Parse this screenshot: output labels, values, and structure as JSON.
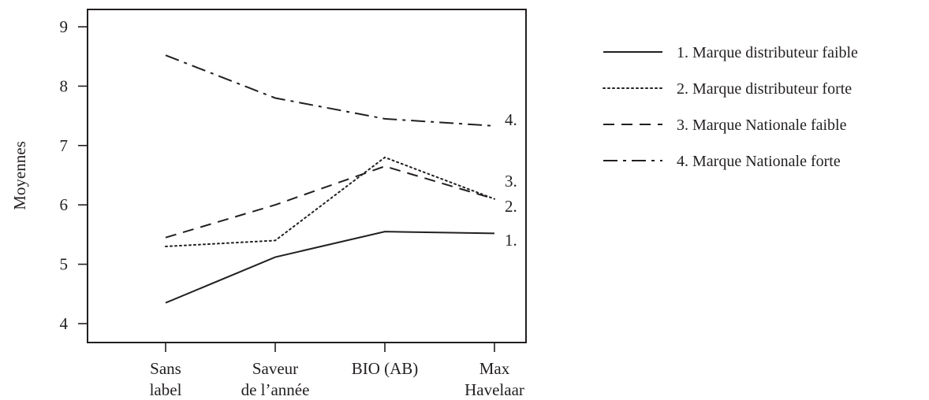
{
  "chart_data": {
    "type": "line",
    "ylabel": "Moyennes",
    "xlabel": "",
    "ylim": [
      3.7,
      9.3
    ],
    "yticks": [
      4,
      5,
      6,
      7,
      8,
      9
    ],
    "categories": [
      [
        "Sans",
        "label"
      ],
      [
        "Saveur",
        "de l’année"
      ],
      [
        "BIO (AB)"
      ],
      [
        "Max",
        "Havelaar"
      ]
    ],
    "series": [
      {
        "name": "1. Marque distributeur faible",
        "end_label": "1.",
        "style": "solid",
        "values": [
          4.35,
          5.12,
          5.55,
          5.52
        ]
      },
      {
        "name": "2. Marque distributeur forte",
        "end_label": "2.",
        "style": "dotted",
        "values": [
          5.3,
          5.4,
          6.8,
          6.1
        ]
      },
      {
        "name": "3. Marque Nationale faible",
        "end_label": "3.",
        "style": "dashed",
        "values": [
          5.45,
          6.0,
          6.65,
          6.1
        ]
      },
      {
        "name": "4. Marque Nationale forte",
        "end_label": "4.",
        "style": "dashdot",
        "values": [
          8.52,
          7.8,
          7.45,
          7.33
        ]
      }
    ],
    "grid": false,
    "legend_position": "right",
    "line_color": "#231f20"
  }
}
